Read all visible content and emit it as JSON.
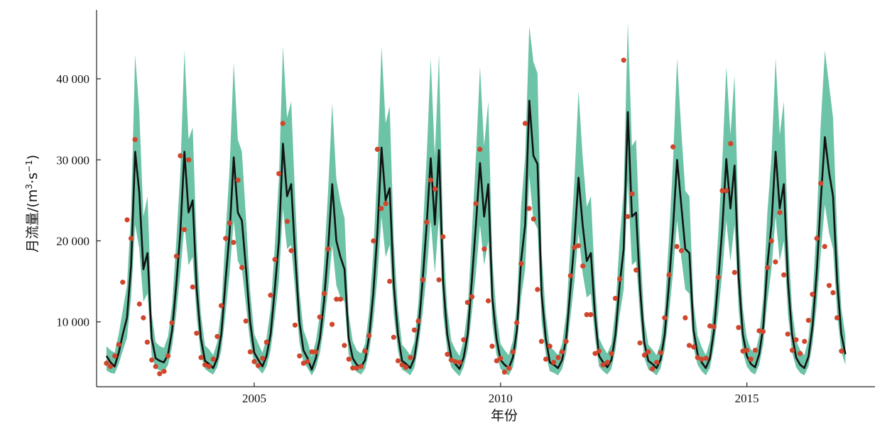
{
  "chart_data": {
    "type": "line",
    "xlabel": "年份",
    "ylabel_main": "月流量/(m",
    "ylabel_sup1": "3",
    "ylabel_mid": "·s",
    "ylabel_sup2": "−1",
    "ylabel_end": ")",
    "xlim": [
      2001.8,
      2017.6
    ],
    "ylim": [
      2000,
      48500
    ],
    "x_ticks": [
      2005,
      2010,
      2015
    ],
    "x_tick_labels": [
      "2005",
      "2010",
      "2015"
    ],
    "y_ticks": [
      10000,
      20000,
      30000,
      40000
    ],
    "y_tick_labels": [
      "10 000",
      "20 000",
      "30 000",
      "40 000"
    ],
    "grid": false,
    "legend": "none",
    "colors": {
      "band": "#6cc3a7",
      "line": "#111111",
      "points": "#d0452b"
    },
    "start_year": 2002,
    "months": 180,
    "series": [
      {
        "role": "simulated",
        "values": [
          5800,
          5000,
          4500,
          6200,
          8500,
          10500,
          17000,
          31000,
          26000,
          16500,
          18500,
          8000,
          5500,
          5200,
          5000,
          6000,
          9000,
          14500,
          21000,
          31000,
          23500,
          25000,
          14000,
          8000,
          5200,
          4800,
          4300,
          5500,
          8500,
          15000,
          21000,
          30300,
          23500,
          22500,
          16500,
          10000,
          6200,
          5300,
          4500,
          5800,
          8500,
          14000,
          20000,
          32000,
          25500,
          27000,
          18000,
          10000,
          6500,
          5500,
          4100,
          5500,
          8000,
          12500,
          19000,
          27000,
          20000,
          18000,
          16500,
          8000,
          5500,
          4700,
          4400,
          5300,
          8200,
          13500,
          21000,
          31500,
          25000,
          26500,
          14500,
          8500,
          5200,
          4800,
          4300,
          5500,
          9000,
          15000,
          22000,
          30200,
          22000,
          31200,
          15000,
          8500,
          5600,
          4800,
          4200,
          5600,
          8500,
          15000,
          22000,
          29600,
          23000,
          27000,
          13000,
          8000,
          5300,
          4700,
          4300,
          5600,
          9000,
          17500,
          22000,
          37300,
          30500,
          29500,
          13500,
          8000,
          5000,
          4700,
          4300,
          5300,
          8000,
          14000,
          20000,
          27800,
          22000,
          17500,
          18500,
          10800,
          5800,
          5000,
          4400,
          5300,
          8500,
          14500,
          19000,
          35900,
          23000,
          23500,
          14000,
          7500,
          5200,
          4800,
          4300,
          5400,
          8500,
          14500,
          21500,
          30000,
          24500,
          19000,
          18500,
          9000,
          6000,
          5000,
          4300,
          5500,
          9000,
          15000,
          21500,
          30100,
          24000,
          29300,
          15500,
          8500,
          5800,
          4800,
          4400,
          6000,
          9500,
          17000,
          22000,
          31000,
          24000,
          27000,
          15000,
          8500,
          5600,
          4700,
          4300,
          5700,
          9500,
          16000,
          25000,
          32800,
          28500,
          25500,
          15000,
          8500,
          6000
        ],
        "lower": [
          4000,
          3700,
          3600,
          4800,
          6500,
          8000,
          13000,
          22000,
          19000,
          12500,
          13500,
          5800,
          4300,
          4000,
          3800,
          4700,
          7000,
          11000,
          16000,
          22000,
          17000,
          18000,
          10500,
          6000,
          4200,
          3800,
          3500,
          4400,
          6500,
          11000,
          16000,
          22500,
          17500,
          16500,
          12000,
          7500,
          4900,
          4200,
          3600,
          4500,
          6500,
          10500,
          15000,
          24000,
          19000,
          19500,
          13500,
          7500,
          5000,
          4300,
          3400,
          4300,
          6200,
          9500,
          14000,
          19500,
          14500,
          13000,
          12500,
          6000,
          4300,
          3800,
          3500,
          4200,
          6300,
          10000,
          15500,
          23000,
          18000,
          19500,
          10800,
          6500,
          4100,
          3800,
          3400,
          4300,
          7000,
          11000,
          16000,
          22500,
          16000,
          23000,
          11000,
          6500,
          4400,
          3800,
          3300,
          4400,
          6500,
          11000,
          16000,
          22000,
          17000,
          20000,
          9800,
          6000,
          4200,
          3700,
          3400,
          4400,
          7000,
          13000,
          16500,
          28000,
          22500,
          21500,
          10000,
          6000,
          3900,
          3700,
          3400,
          4200,
          6200,
          10500,
          15000,
          21000,
          16000,
          13000,
          13500,
          8000,
          4500,
          3900,
          3500,
          4200,
          6600,
          10800,
          14000,
          27500,
          17000,
          17500,
          10500,
          5600,
          4100,
          3800,
          3400,
          4300,
          6600,
          10800,
          16000,
          22500,
          18000,
          14000,
          13500,
          6800,
          4700,
          3900,
          3400,
          4300,
          7000,
          11000,
          16000,
          22500,
          17500,
          22000,
          11500,
          6300,
          4500,
          3800,
          3500,
          4700,
          7300,
          12500,
          16500,
          23000,
          17500,
          20000,
          11000,
          6300,
          4400,
          3700,
          3400,
          4500,
          7300,
          12000,
          18500,
          24500,
          21000,
          19000,
          11000,
          6300,
          4700
        ],
        "upper": [
          7000,
          6500,
          6200,
          8500,
          11500,
          14500,
          23500,
          43000,
          36000,
          23000,
          25500,
          11000,
          7500,
          7000,
          6800,
          8200,
          12200,
          19800,
          28500,
          43500,
          32500,
          34000,
          19500,
          11000,
          7100,
          6600,
          5900,
          7500,
          11700,
          20700,
          29000,
          42000,
          32500,
          31000,
          22800,
          13800,
          8500,
          7300,
          6200,
          8000,
          11700,
          19300,
          27600,
          44000,
          35200,
          37200,
          24800,
          13800,
          9000,
          7600,
          5700,
          7600,
          11000,
          17300,
          26200,
          37000,
          27600,
          24800,
          22800,
          11000,
          7600,
          6500,
          6100,
          7300,
          11300,
          18600,
          28900,
          44000,
          34500,
          36600,
          20000,
          11700,
          7200,
          6600,
          5900,
          7600,
          12400,
          20700,
          30400,
          42500,
          30400,
          43000,
          20700,
          11700,
          7700,
          6600,
          5800,
          7700,
          11700,
          20700,
          30400,
          41500,
          31700,
          37200,
          17900,
          11000,
          7300,
          6500,
          5900,
          7700,
          12400,
          24200,
          30400,
          46500,
          42100,
          40700,
          18600,
          11000,
          6900,
          6500,
          5900,
          7300,
          11000,
          19300,
          27600,
          38500,
          30400,
          24200,
          25500,
          14900,
          8000,
          6900,
          6100,
          7300,
          11700,
          20000,
          26200,
          47000,
          31700,
          32500,
          19300,
          10300,
          7200,
          6600,
          5900,
          7400,
          11700,
          20000,
          29700,
          42500,
          33800,
          26200,
          25500,
          12400,
          8300,
          6900,
          5900,
          7600,
          12400,
          20700,
          29700,
          41500,
          33100,
          40400,
          21400,
          11700,
          8000,
          6600,
          6100,
          8300,
          13100,
          23500,
          30400,
          42500,
          33100,
          37200,
          20700,
          11700,
          7700,
          6500,
          5900,
          7900,
          13100,
          22100,
          34500,
          43500,
          39300,
          35200,
          20700,
          11700,
          8300
        ]
      }
    ],
    "observed_points": [
      [
        2002.0,
        4900
      ],
      [
        2002.08,
        4500
      ],
      [
        2002.17,
        5800
      ],
      [
        2002.25,
        7200
      ],
      [
        2002.33,
        14900
      ],
      [
        2002.42,
        22600
      ],
      [
        2002.5,
        20300
      ],
      [
        2002.58,
        32500
      ],
      [
        2002.67,
        12200
      ],
      [
        2002.75,
        10500
      ],
      [
        2002.83,
        7500
      ],
      [
        2002.92,
        5300
      ],
      [
        2003.0,
        4500
      ],
      [
        2003.08,
        3600
      ],
      [
        2003.17,
        3900
      ],
      [
        2003.25,
        5800
      ],
      [
        2003.33,
        9900
      ],
      [
        2003.42,
        18100
      ],
      [
        2003.5,
        30500
      ],
      [
        2003.58,
        21400
      ],
      [
        2003.67,
        30000
      ],
      [
        2003.75,
        14300
      ],
      [
        2003.83,
        8600
      ],
      [
        2003.92,
        5600
      ],
      [
        2004.0,
        4700
      ],
      [
        2004.08,
        4500
      ],
      [
        2004.17,
        5400
      ],
      [
        2004.25,
        8200
      ],
      [
        2004.33,
        12000
      ],
      [
        2004.42,
        20300
      ],
      [
        2004.5,
        22200
      ],
      [
        2004.58,
        19800
      ],
      [
        2004.67,
        27500
      ],
      [
        2004.75,
        16700
      ],
      [
        2004.83,
        10100
      ],
      [
        2004.92,
        6300
      ],
      [
        2005.0,
        5100
      ],
      [
        2005.08,
        4600
      ],
      [
        2005.17,
        5500
      ],
      [
        2005.25,
        7500
      ],
      [
        2005.33,
        13300
      ],
      [
        2005.42,
        17700
      ],
      [
        2005.5,
        28300
      ],
      [
        2005.58,
        34500
      ],
      [
        2005.67,
        22400
      ],
      [
        2005.75,
        18800
      ],
      [
        2005.83,
        9600
      ],
      [
        2005.92,
        5800
      ],
      [
        2006.0,
        4900
      ],
      [
        2006.08,
        5100
      ],
      [
        2006.17,
        6300
      ],
      [
        2006.25,
        6300
      ],
      [
        2006.33,
        10600
      ],
      [
        2006.42,
        13500
      ],
      [
        2006.5,
        19000
      ],
      [
        2006.58,
        9700
      ],
      [
        2006.67,
        12800
      ],
      [
        2006.75,
        12800
      ],
      [
        2006.83,
        7100
      ],
      [
        2006.92,
        5400
      ],
      [
        2007.0,
        4300
      ],
      [
        2007.08,
        4300
      ],
      [
        2007.17,
        4500
      ],
      [
        2007.25,
        6400
      ],
      [
        2007.33,
        8300
      ],
      [
        2007.42,
        20000
      ],
      [
        2007.5,
        31300
      ],
      [
        2007.58,
        24000
      ],
      [
        2007.67,
        24600
      ],
      [
        2007.75,
        15000
      ],
      [
        2007.83,
        8100
      ],
      [
        2007.92,
        5200
      ],
      [
        2008.0,
        4700
      ],
      [
        2008.08,
        4400
      ],
      [
        2008.17,
        5600
      ],
      [
        2008.25,
        9000
      ],
      [
        2008.33,
        10100
      ],
      [
        2008.42,
        15200
      ],
      [
        2008.5,
        22300
      ],
      [
        2008.58,
        27500
      ],
      [
        2008.67,
        26400
      ],
      [
        2008.75,
        15200
      ],
      [
        2008.83,
        20500
      ],
      [
        2008.92,
        6000
      ],
      [
        2009.0,
        5300
      ],
      [
        2009.08,
        5100
      ],
      [
        2009.17,
        5000
      ],
      [
        2009.25,
        7800
      ],
      [
        2009.33,
        12400
      ],
      [
        2009.42,
        13100
      ],
      [
        2009.5,
        24600
      ],
      [
        2009.58,
        31300
      ],
      [
        2009.67,
        19000
      ],
      [
        2009.75,
        12600
      ],
      [
        2009.83,
        7000
      ],
      [
        2009.92,
        5200
      ],
      [
        2010.0,
        5500
      ],
      [
        2010.08,
        3800
      ],
      [
        2010.17,
        4300
      ],
      [
        2010.25,
        6300
      ],
      [
        2010.33,
        9900
      ],
      [
        2010.42,
        17200
      ],
      [
        2010.5,
        34500
      ],
      [
        2010.58,
        24000
      ],
      [
        2010.67,
        22700
      ],
      [
        2010.75,
        14000
      ],
      [
        2010.83,
        7600
      ],
      [
        2010.92,
        5400
      ],
      [
        2011.0,
        7000
      ],
      [
        2011.08,
        5000
      ],
      [
        2011.17,
        5600
      ],
      [
        2011.25,
        6300
      ],
      [
        2011.33,
        7600
      ],
      [
        2011.42,
        15700
      ],
      [
        2011.5,
        19200
      ],
      [
        2011.58,
        19400
      ],
      [
        2011.67,
        16900
      ],
      [
        2011.75,
        10900
      ],
      [
        2011.83,
        10900
      ],
      [
        2011.92,
        6100
      ],
      [
        2012.0,
        6400
      ],
      [
        2012.08,
        4700
      ],
      [
        2012.17,
        5000
      ],
      [
        2012.25,
        6100
      ],
      [
        2012.33,
        12900
      ],
      [
        2012.42,
        15300
      ],
      [
        2012.5,
        42300
      ],
      [
        2012.58,
        23000
      ],
      [
        2012.67,
        25800
      ],
      [
        2012.75,
        16400
      ],
      [
        2012.83,
        7400
      ],
      [
        2012.92,
        5900
      ],
      [
        2013.0,
        6300
      ],
      [
        2013.08,
        4200
      ],
      [
        2013.17,
        5000
      ],
      [
        2013.25,
        6200
      ],
      [
        2013.33,
        10500
      ],
      [
        2013.42,
        15800
      ],
      [
        2013.5,
        31600
      ],
      [
        2013.58,
        19300
      ],
      [
        2013.67,
        18800
      ],
      [
        2013.75,
        10500
      ],
      [
        2013.83,
        7100
      ],
      [
        2013.92,
        6900
      ],
      [
        2014.0,
        5600
      ],
      [
        2014.08,
        5400
      ],
      [
        2014.17,
        5500
      ],
      [
        2014.25,
        9500
      ],
      [
        2014.33,
        9400
      ],
      [
        2014.42,
        15500
      ],
      [
        2014.5,
        26200
      ],
      [
        2014.58,
        26200
      ],
      [
        2014.67,
        32000
      ],
      [
        2014.75,
        16100
      ],
      [
        2014.83,
        9300
      ],
      [
        2014.92,
        6400
      ],
      [
        2015.0,
        6500
      ],
      [
        2015.08,
        5400
      ],
      [
        2015.17,
        6500
      ],
      [
        2015.25,
        8900
      ],
      [
        2015.33,
        8800
      ],
      [
        2015.42,
        16700
      ],
      [
        2015.5,
        20000
      ],
      [
        2015.58,
        17400
      ],
      [
        2015.67,
        23500
      ],
      [
        2015.75,
        15800
      ],
      [
        2015.83,
        8500
      ],
      [
        2015.92,
        6500
      ],
      [
        2016.0,
        7800
      ],
      [
        2016.08,
        6100
      ],
      [
        2016.17,
        7600
      ],
      [
        2016.25,
        10200
      ],
      [
        2016.33,
        13400
      ],
      [
        2016.42,
        20300
      ],
      [
        2016.5,
        27100
      ],
      [
        2016.58,
        19300
      ],
      [
        2016.67,
        14500
      ],
      [
        2016.75,
        13600
      ],
      [
        2016.83,
        10500
      ],
      [
        2016.92,
        6400
      ]
    ]
  }
}
